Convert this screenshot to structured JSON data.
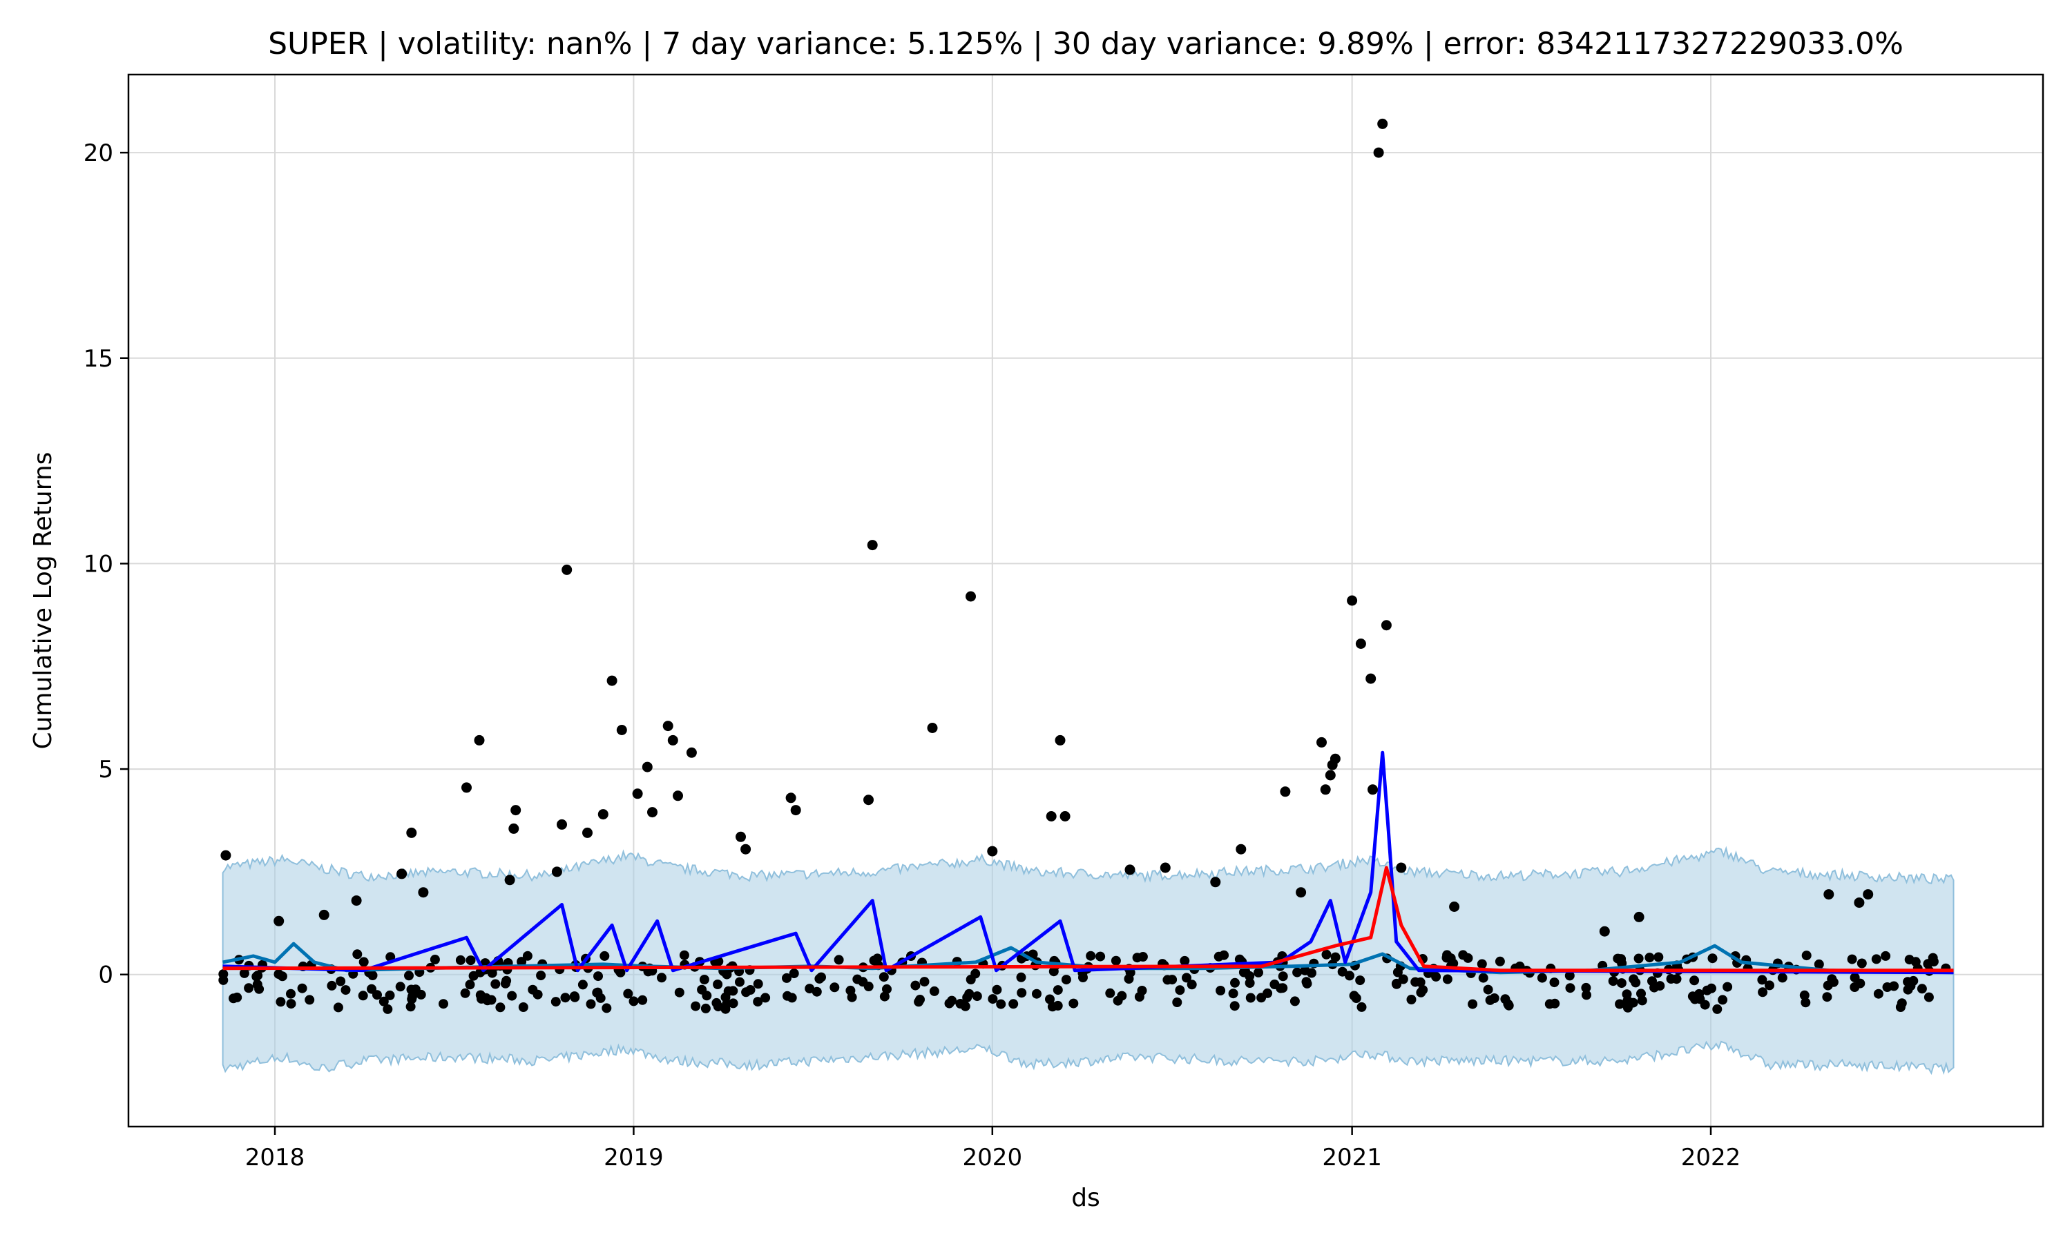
{
  "chart_data": {
    "type": "scatter",
    "title": "SUPER | volatility: nan% | 7 day variance: 5.125% | 30 day variance: 9.89% | error: 8342117327229033.0%",
    "xlabel": "ds",
    "ylabel": "Cumulative Log Returns",
    "xlim": [
      "2017-08-05",
      "2022-12-05"
    ],
    "ylim": [
      -3.7,
      21.9
    ],
    "grid": true,
    "x_ticks": [
      {
        "date": "2018-01-01",
        "label": "2018"
      },
      {
        "date": "2019-01-01",
        "label": "2019"
      },
      {
        "date": "2020-01-01",
        "label": "2020"
      },
      {
        "date": "2021-01-01",
        "label": "2021"
      },
      {
        "date": "2022-01-01",
        "label": "2022"
      }
    ],
    "y_ticks": [
      0,
      5,
      10,
      15,
      20
    ],
    "series": [
      {
        "kind": "band",
        "color": "#a9cde4",
        "opacity": 0.55,
        "start": "2017-11-09",
        "end": "2022-09-05",
        "points": [
          [
            "2017-11-09",
            -2.3,
            2.6
          ],
          [
            "2018-01-10",
            -2.0,
            2.8
          ],
          [
            "2018-02-15",
            -2.3,
            2.6
          ],
          [
            "2018-04-01",
            -2.1,
            2.4
          ],
          [
            "2018-07-01",
            -2.0,
            2.5
          ],
          [
            "2018-10-01",
            -2.1,
            2.4
          ],
          [
            "2018-12-25",
            -1.8,
            2.9
          ],
          [
            "2019-02-10",
            -2.1,
            2.6
          ],
          [
            "2019-05-01",
            -2.2,
            2.4
          ],
          [
            "2019-09-01",
            -2.0,
            2.5
          ],
          [
            "2019-12-25",
            -1.8,
            2.8
          ],
          [
            "2020-02-10",
            -2.2,
            2.5
          ],
          [
            "2020-06-01",
            -2.0,
            2.4
          ],
          [
            "2020-09-01",
            -2.1,
            2.5
          ],
          [
            "2020-12-01",
            -2.1,
            2.6
          ],
          [
            "2021-01-15",
            -1.9,
            2.8
          ],
          [
            "2021-03-01",
            -2.1,
            2.5
          ],
          [
            "2021-06-01",
            -2.1,
            2.4
          ],
          [
            "2021-10-01",
            -2.1,
            2.5
          ],
          [
            "2022-01-15",
            -1.7,
            3.0
          ],
          [
            "2022-03-01",
            -2.2,
            2.5
          ],
          [
            "2022-06-01",
            -2.2,
            2.4
          ],
          [
            "2022-09-05",
            -2.3,
            2.3
          ]
        ]
      },
      {
        "kind": "line",
        "color": "#0072b2",
        "points": [
          [
            "2017-11-09",
            0.3
          ],
          [
            "2017-12-10",
            0.45
          ],
          [
            "2018-01-01",
            0.3
          ],
          [
            "2018-01-20",
            0.75
          ],
          [
            "2018-02-10",
            0.3
          ],
          [
            "2018-03-15",
            0.1
          ],
          [
            "2018-06-01",
            0.15
          ],
          [
            "2018-09-01",
            0.2
          ],
          [
            "2018-12-01",
            0.25
          ],
          [
            "2019-01-15",
            0.2
          ],
          [
            "2019-04-01",
            0.15
          ],
          [
            "2019-07-01",
            0.2
          ],
          [
            "2019-09-01",
            0.15
          ],
          [
            "2019-12-15",
            0.3
          ],
          [
            "2020-01-20",
            0.65
          ],
          [
            "2020-02-15",
            0.3
          ],
          [
            "2020-05-01",
            0.15
          ],
          [
            "2020-08-01",
            0.15
          ],
          [
            "2020-11-01",
            0.2
          ],
          [
            "2021-01-01",
            0.25
          ],
          [
            "2021-02-01",
            0.5
          ],
          [
            "2021-03-01",
            0.15
          ],
          [
            "2021-06-01",
            0.05
          ],
          [
            "2021-09-01",
            0.1
          ],
          [
            "2021-12-01",
            0.3
          ],
          [
            "2022-01-05",
            0.7
          ],
          [
            "2022-02-01",
            0.3
          ],
          [
            "2022-05-01",
            0.1
          ],
          [
            "2022-09-05",
            0.05
          ]
        ]
      },
      {
        "kind": "line",
        "color": "#0000ff",
        "points": [
          [
            "2017-11-09",
            0.2
          ],
          [
            "2018-04-01",
            0.1
          ],
          [
            "2018-07-15",
            0.9
          ],
          [
            "2018-08-01",
            0.1
          ],
          [
            "2018-10-20",
            1.7
          ],
          [
            "2018-11-05",
            0.1
          ],
          [
            "2018-12-10",
            1.2
          ],
          [
            "2018-12-25",
            0.1
          ],
          [
            "2019-01-25",
            1.3
          ],
          [
            "2019-02-10",
            0.1
          ],
          [
            "2019-06-15",
            1.0
          ],
          [
            "2019-07-01",
            0.1
          ],
          [
            "2019-09-01",
            1.8
          ],
          [
            "2019-09-15",
            0.1
          ],
          [
            "2019-12-20",
            1.4
          ],
          [
            "2020-01-05",
            0.1
          ],
          [
            "2020-03-10",
            1.3
          ],
          [
            "2020-03-25",
            0.1
          ],
          [
            "2020-10-20",
            0.3
          ],
          [
            "2020-11-20",
            0.8
          ],
          [
            "2020-12-10",
            1.8
          ],
          [
            "2020-12-25",
            0.3
          ],
          [
            "2021-01-20",
            2.0
          ],
          [
            "2021-02-01",
            5.4
          ],
          [
            "2021-02-07",
            3.5
          ],
          [
            "2021-02-15",
            0.8
          ],
          [
            "2021-03-10",
            0.1
          ],
          [
            "2022-09-05",
            0.05
          ]
        ]
      },
      {
        "kind": "line",
        "color": "#ff0000",
        "points": [
          [
            "2017-11-09",
            0.15
          ],
          [
            "2020-10-01",
            0.2
          ],
          [
            "2020-12-15",
            0.7
          ],
          [
            "2021-01-20",
            0.9
          ],
          [
            "2021-02-05",
            2.6
          ],
          [
            "2021-02-20",
            1.2
          ],
          [
            "2021-03-15",
            0.2
          ],
          [
            "2021-06-01",
            0.1
          ],
          [
            "2022-09-05",
            0.1
          ]
        ]
      },
      {
        "kind": "scatter",
        "color": "#000000",
        "points": [
          [
            "2017-11-12",
            2.9
          ],
          [
            "2018-01-05",
            1.3
          ],
          [
            "2018-02-20",
            1.45
          ],
          [
            "2018-03-25",
            1.8
          ],
          [
            "2018-05-10",
            2.45
          ],
          [
            "2018-05-20",
            3.45
          ],
          [
            "2018-06-01",
            2.0
          ],
          [
            "2018-07-15",
            4.55
          ],
          [
            "2018-07-28",
            5.7
          ],
          [
            "2018-08-28",
            2.3
          ],
          [
            "2018-09-03",
            4.0
          ],
          [
            "2018-09-01",
            3.55
          ],
          [
            "2018-10-15",
            2.5
          ],
          [
            "2018-10-20",
            3.65
          ],
          [
            "2018-10-25",
            9.85
          ],
          [
            "2018-11-15",
            3.45
          ],
          [
            "2018-12-01",
            3.9
          ],
          [
            "2018-12-10",
            7.15
          ],
          [
            "2018-12-20",
            5.95
          ],
          [
            "2019-01-05",
            4.4
          ],
          [
            "2019-01-15",
            5.05
          ],
          [
            "2019-01-20",
            3.95
          ],
          [
            "2019-02-05",
            6.05
          ],
          [
            "2019-02-10",
            5.7
          ],
          [
            "2019-02-15",
            4.35
          ],
          [
            "2019-03-01",
            5.4
          ],
          [
            "2019-04-20",
            3.35
          ],
          [
            "2019-04-25",
            3.05
          ],
          [
            "2019-06-10",
            4.3
          ],
          [
            "2019-06-15",
            4.0
          ],
          [
            "2019-08-28",
            4.25
          ],
          [
            "2019-09-01",
            10.45
          ],
          [
            "2019-11-01",
            6.0
          ],
          [
            "2019-12-10",
            9.2
          ],
          [
            "2020-01-01",
            3.0
          ],
          [
            "2020-03-01",
            3.85
          ],
          [
            "2020-03-10",
            5.7
          ],
          [
            "2020-03-15",
            3.85
          ],
          [
            "2020-05-20",
            2.55
          ],
          [
            "2020-06-25",
            2.6
          ],
          [
            "2020-08-15",
            2.25
          ],
          [
            "2020-09-10",
            3.05
          ],
          [
            "2020-10-25",
            4.45
          ],
          [
            "2020-11-10",
            2.0
          ],
          [
            "2020-12-01",
            5.65
          ],
          [
            "2020-12-05",
            4.5
          ],
          [
            "2020-12-10",
            4.85
          ],
          [
            "2020-12-12",
            5.1
          ],
          [
            "2020-12-15",
            5.25
          ],
          [
            "2021-01-01",
            9.1
          ],
          [
            "2021-01-10",
            8.05
          ],
          [
            "2021-01-20",
            7.2
          ],
          [
            "2021-01-22",
            4.5
          ],
          [
            "2021-01-28",
            20.0
          ],
          [
            "2021-02-01",
            20.7
          ],
          [
            "2021-02-05",
            8.5
          ],
          [
            "2021-02-20",
            2.6
          ],
          [
            "2021-04-15",
            1.65
          ],
          [
            "2021-09-15",
            1.05
          ],
          [
            "2021-10-20",
            1.4
          ],
          [
            "2022-05-01",
            1.95
          ],
          [
            "2022-06-10",
            1.95
          ],
          [
            "2022-06-01",
            1.75
          ]
        ]
      }
    ],
    "dense_points": {
      "description": "dense cluster of daily observations",
      "color": "#000000",
      "start": "2017-11-09",
      "end": "2022-09-05",
      "y_range": [
        -0.85,
        0.5
      ],
      "count": 420
    }
  }
}
